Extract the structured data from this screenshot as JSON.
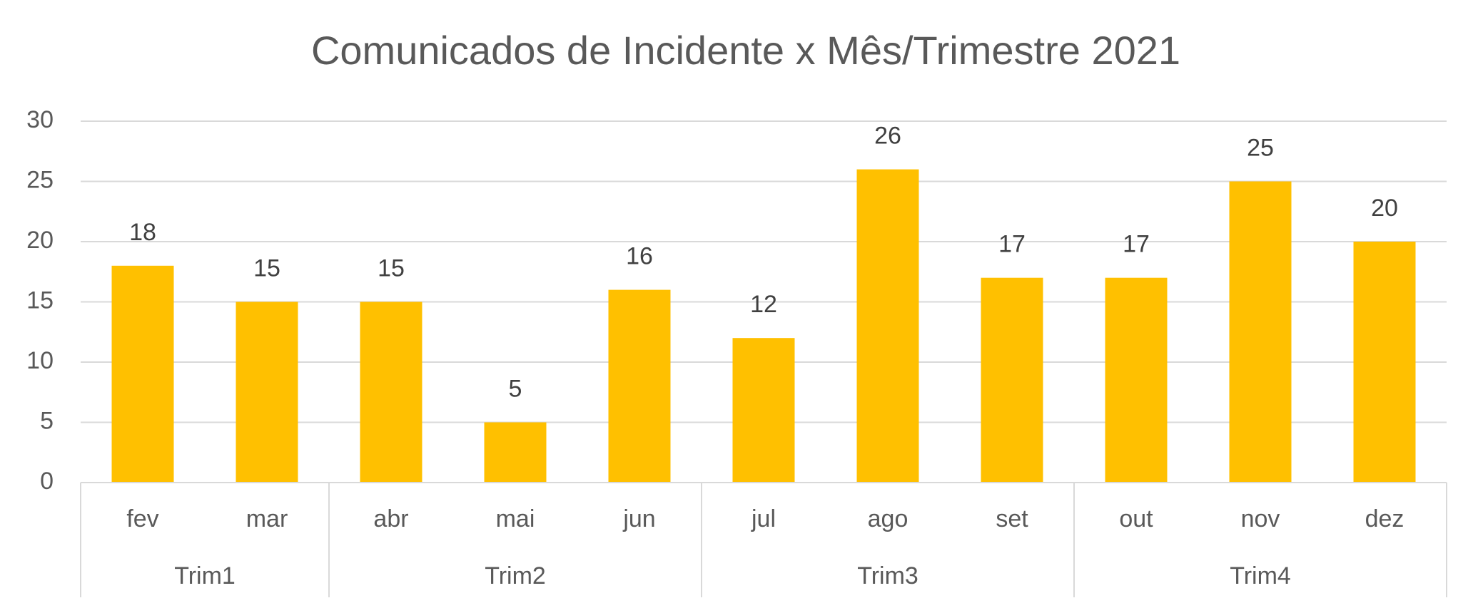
{
  "chart_data": {
    "type": "bar",
    "title": "Comunicados de Incidente x Mês/Trimestre 2021",
    "groups": [
      {
        "name": "Trim1",
        "categories": [
          "fev",
          "mar"
        ]
      },
      {
        "name": "Trim2",
        "categories": [
          "abr",
          "mai",
          "jun"
        ]
      },
      {
        "name": "Trim3",
        "categories": [
          "jul",
          "ago",
          "set"
        ]
      },
      {
        "name": "Trim4",
        "categories": [
          "out",
          "nov",
          "dez"
        ]
      }
    ],
    "values": [
      18,
      15,
      15,
      5,
      16,
      12,
      26,
      17,
      17,
      25,
      20
    ],
    "color": "#ffc000",
    "ylim": [
      0,
      30
    ],
    "yticks": [
      0,
      5,
      10,
      15,
      20,
      25,
      30
    ],
    "grid": true,
    "data_labels": true
  }
}
